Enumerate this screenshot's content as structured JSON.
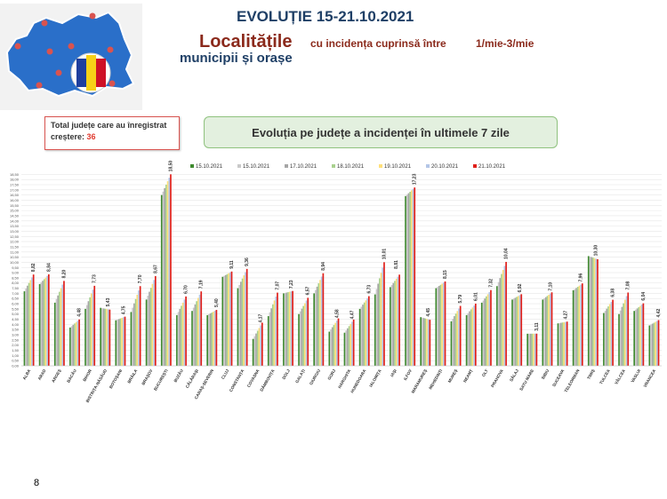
{
  "header": {
    "title": "EVOLUȚIE 15-21.10.2021",
    "localitati": "Localitățile",
    "incidence_text": "cu incidența cuprinsă între",
    "incidence_range": "1/mie-3/mie",
    "municipii": "municipii și orașe"
  },
  "info_box": {
    "label": "Total județe care au înregistrat creștere:",
    "count": "36"
  },
  "banner": {
    "text": "Evoluția pe județe a incidenței în ultimele 7 zile"
  },
  "page_number": "8",
  "colors": {
    "series": [
      "#3f8a2f",
      "#c9c9c9",
      "#a6a6a6",
      "#a9d18e",
      "#ffe07a",
      "#b4c6e7",
      "#e0201b"
    ],
    "title_blue": "#1f3f66",
    "title_red": "#8b2a1c"
  },
  "chart_data": {
    "type": "bar",
    "title": "",
    "xlabel": "",
    "ylabel": "",
    "ylim": [
      0,
      18.7
    ],
    "grid": true,
    "legend_position": "top",
    "series": [
      {
        "name": "15.10.2021"
      },
      {
        "name": "15.10.2021"
      },
      {
        "name": "17.10.2021"
      },
      {
        "name": "18.10.2021"
      },
      {
        "name": "19.10.2021"
      },
      {
        "name": "20.10.2021"
      },
      {
        "name": "21.10.2021"
      }
    ],
    "categories": [
      "ALBA",
      "ARAD",
      "ARGEȘ",
      "BACĂU",
      "BIHOR",
      "BISTRIȚA-NĂSĂUD",
      "BOTOȘANI",
      "BRĂILA",
      "BRAȘOV",
      "BUCUREȘTI",
      "BUZĂU",
      "CĂLĂRAȘI",
      "CARAȘ-SEVERIN",
      "CLUJ",
      "CONSTANȚA",
      "COVASNA",
      "DÂMBOVIȚA",
      "DOLJ",
      "GALAȚI",
      "GIURGIU",
      "GORJ",
      "HARGHITA",
      "HUNEDOARA",
      "IALOMIȚA",
      "IAȘI",
      "ILFOV",
      "MARAMUREȘ",
      "MEHEDINȚI",
      "MUREȘ",
      "NEAMȚ",
      "OLT",
      "PRAHOVA",
      "SĂLAJ",
      "SATU MARE",
      "SIBIU",
      "SUCEAVA",
      "TELEORMAN",
      "TIMIȘ",
      "TULCEA",
      "VÂLCEA",
      "VASLUI",
      "VRANCEA"
    ],
    "start_values": [
      7.2,
      7.9,
      6.1,
      3.7,
      5.5,
      5.6,
      4.4,
      5.2,
      6.4,
      16.5,
      4.9,
      5.3,
      4.9,
      8.6,
      7.5,
      2.6,
      4.8,
      7.0,
      5.0,
      7.0,
      3.3,
      3.2,
      5.5,
      6.9,
      7.6,
      16.4,
      4.7,
      7.5,
      4.3,
      4.9,
      6.1,
      7.7,
      6.4,
      3.1,
      6.4,
      4.1,
      7.3,
      10.6,
      5.1,
      5.0,
      5.3,
      3.9
    ],
    "labels_last": [
      "8,82",
      "8,84",
      "8,20",
      "4,48",
      "7,73",
      "5,43",
      "4,75",
      "7,70",
      "8,67",
      "18,50",
      "6,70",
      "7,19",
      "5,40",
      "9,11",
      "9,36",
      "4,17",
      "7,07",
      "7,23",
      "6,57",
      "8,94",
      "4,58",
      "4,47",
      "6,73",
      "10,01",
      "8,81",
      "17,23",
      "4,45",
      "8,15",
      "5,79",
      "6,01",
      "7,32",
      "10,04",
      "6,92",
      "3,11",
      "7,10",
      "4,27",
      "7,96",
      "10,30",
      "6,38",
      "7,08",
      "6,04",
      "4,42"
    ],
    "values_last": [
      8.82,
      8.84,
      8.2,
      4.48,
      7.73,
      5.43,
      4.75,
      7.7,
      8.67,
      18.5,
      6.7,
      7.19,
      5.4,
      9.11,
      9.36,
      4.17,
      7.07,
      7.23,
      6.57,
      8.94,
      4.58,
      4.47,
      6.73,
      10.01,
      8.81,
      17.23,
      4.45,
      8.15,
      5.79,
      6.01,
      7.32,
      10.04,
      6.92,
      3.11,
      7.1,
      4.27,
      7.96,
      10.3,
      6.38,
      7.08,
      6.04,
      4.42
    ],
    "label_series_index": [
      6,
      6,
      6,
      6,
      6,
      5,
      5,
      6,
      6,
      6,
      6,
      6,
      6,
      6,
      6,
      5,
      6,
      5,
      6,
      6,
      5,
      5,
      6,
      6,
      4,
      6,
      5,
      6,
      6,
      6,
      6,
      6,
      5,
      6,
      5,
      5,
      5,
      5,
      6,
      6,
      6,
      6
    ],
    "label_offset": [
      0,
      0,
      0,
      0,
      0,
      0,
      0,
      0,
      0,
      0,
      0,
      0,
      0,
      0,
      0,
      0,
      0,
      0,
      0,
      0,
      0,
      0,
      0,
      0,
      0.7,
      0,
      0,
      0,
      0,
      0,
      0,
      0,
      0,
      0,
      0,
      0,
      0,
      0,
      0,
      0,
      0,
      0
    ],
    "y_ticks": [
      "0,00",
      "0,50",
      "1,00",
      "1,50",
      "2,00",
      "2,50",
      "3,00",
      "3,50",
      "4,00",
      "4,50",
      "5,00",
      "5,50",
      "6,00",
      "6,50",
      "7,00",
      "7,50",
      "8,00",
      "8,50",
      "9,00",
      "9,50",
      "10,00",
      "10,50",
      "11,00",
      "11,50",
      "12,00",
      "12,50",
      "13,00",
      "13,50",
      "14,00",
      "14,50",
      "15,00",
      "15,50",
      "16,00",
      "16,50",
      "17,00",
      "17,50",
      "18,00",
      "18,50"
    ]
  }
}
